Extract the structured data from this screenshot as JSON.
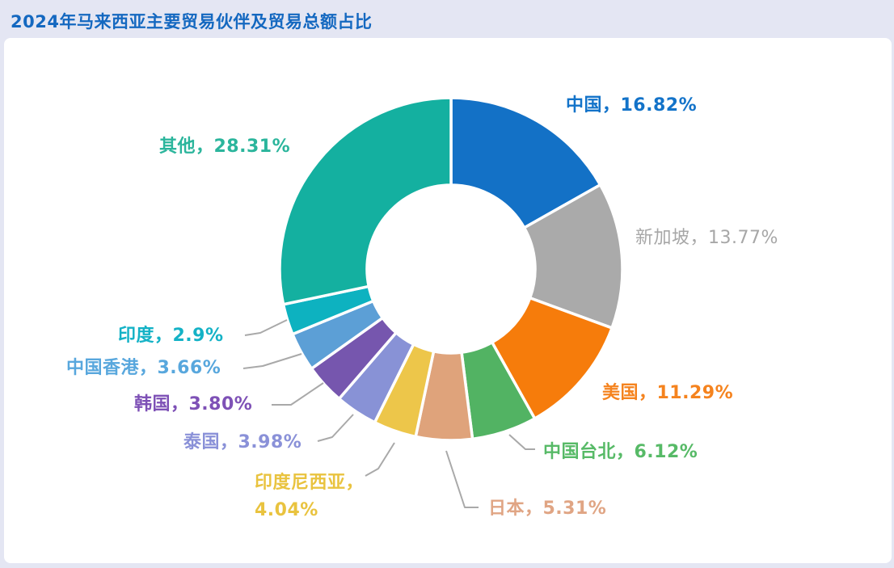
{
  "page": {
    "title": "2024年马来西亚主要贸易伙伴及贸易总额占比",
    "title_color": "#1468c0",
    "background_color": "#e4e6f3",
    "card_background": "#ffffff"
  },
  "chart_data": {
    "type": "pie",
    "subtype": "donut",
    "title": "2024年马来西亚主要贸易伙伴及贸易总额占比",
    "unit": "%",
    "total": 100,
    "start_angle_deg": 0,
    "direction": "clockwise",
    "legend_position": "none",
    "slices": [
      {
        "name": "中国",
        "value": 16.82,
        "label": "中国，16.82%",
        "label_lines": [
          "中国，16.82%"
        ],
        "color": "#1371c6",
        "label_color": "#1373c9"
      },
      {
        "name": "新加坡",
        "value": 13.77,
        "label": "新加坡，13.77%",
        "label_lines": [
          "新加坡，13.77%"
        ],
        "color": "#aaaaaa",
        "label_color": "#a7a7a7"
      },
      {
        "name": "美国",
        "value": 11.29,
        "label": "美国，11.29%",
        "label_lines": [
          "美国，11.29%"
        ],
        "color": "#f67c0b",
        "label_color": "#f5831e"
      },
      {
        "name": "中国台北",
        "value": 6.12,
        "label": "中国台北，6.12%",
        "label_lines": [
          "中国台北，6.12%"
        ],
        "color": "#52b363",
        "label_color": "#57ba67"
      },
      {
        "name": "日本",
        "value": 5.31,
        "label": "日本，5.31%",
        "label_lines": [
          "日本，5.31%"
        ],
        "color": "#dfa37b",
        "label_color": "#e0a584"
      },
      {
        "name": "印度尼西亚",
        "value": 4.04,
        "label": "印度尼西亚，4.04%",
        "label_lines": [
          "印度尼西亚，",
          "4.04%"
        ],
        "color": "#edc64a",
        "label_color": "#e9c33f"
      },
      {
        "name": "泰国",
        "value": 3.98,
        "label": "泰国，3.98%",
        "label_lines": [
          "泰国，3.98%"
        ],
        "color": "#8892d6",
        "label_color": "#8a91d8"
      },
      {
        "name": "韩国",
        "value": 3.8,
        "label": "韩国，3.80%",
        "label_lines": [
          "韩国，3.80%"
        ],
        "color": "#7656ae",
        "label_color": "#7e51b6"
      },
      {
        "name": "中国香港",
        "value": 3.66,
        "label": "中国香港，3.66%",
        "label_lines": [
          "中国香港，3.66%"
        ],
        "color": "#5c9fd6",
        "label_color": "#58a7dd"
      },
      {
        "name": "印度",
        "value": 2.9,
        "label": "印度，2.9%",
        "label_lines": [
          "印度，2.9%"
        ],
        "color": "#0db2c0",
        "label_color": "#14b2c6"
      },
      {
        "name": "其他",
        "value": 28.31,
        "label": "其他，28.31%",
        "label_lines": [
          "其他，28.31%"
        ],
        "color": "#14b0a0",
        "label_color": "#2bb59c"
      }
    ]
  }
}
